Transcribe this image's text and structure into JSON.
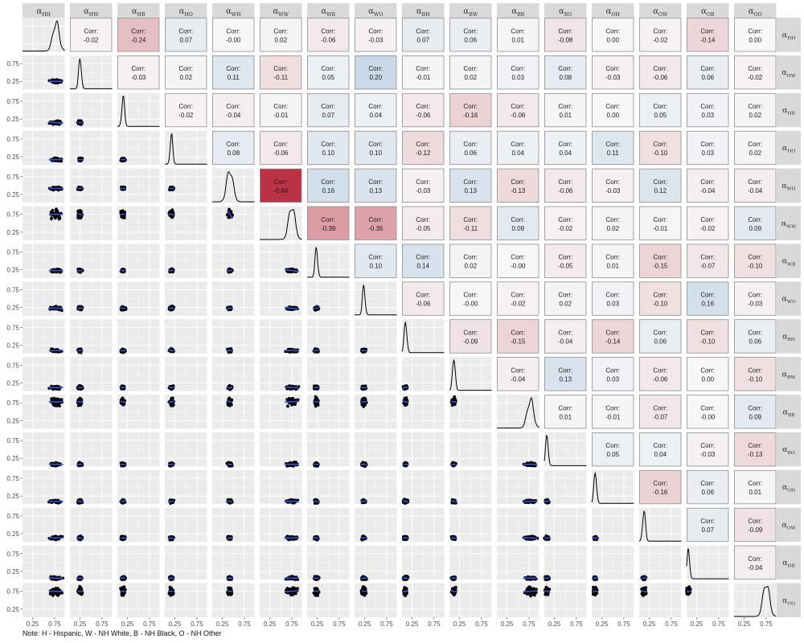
{
  "note": "Note: H - Hispanic, W - NH White, B - NH Black, O - NH Other",
  "chart_data": {
    "type": "scatter",
    "title": "",
    "corr_label": "Corr:",
    "variables": [
      {
        "base": "α",
        "sub": "HH"
      },
      {
        "base": "α",
        "sub": "HW"
      },
      {
        "base": "α",
        "sub": "HB"
      },
      {
        "base": "α",
        "sub": "HO"
      },
      {
        "base": "α",
        "sub": "WH"
      },
      {
        "base": "α",
        "sub": "WW"
      },
      {
        "base": "α",
        "sub": "WB"
      },
      {
        "base": "α",
        "sub": "WO"
      },
      {
        "base": "α",
        "sub": "BH"
      },
      {
        "base": "α",
        "sub": "BW"
      },
      {
        "base": "α",
        "sub": "BB"
      },
      {
        "base": "α",
        "sub": "BO"
      },
      {
        "base": "α",
        "sub": "OH"
      },
      {
        "base": "α",
        "sub": "OW"
      },
      {
        "base": "α",
        "sub": "OB"
      },
      {
        "base": "α",
        "sub": "OO"
      }
    ],
    "means": [
      0.78,
      0.25,
      0.15,
      0.17,
      0.42,
      0.75,
      0.23,
      0.23,
      0.1,
      0.12,
      0.78,
      0.08,
      0.1,
      0.13,
      0.06,
      0.75
    ],
    "axis_range": [
      0,
      1
    ],
    "y_ticks": [
      "0.25",
      "0.75"
    ],
    "x_ticks": [
      "0.25",
      "0.75"
    ],
    "correlations": [
      [
        null,
        "-0.02",
        "-0.24",
        "0.07",
        "-0.00",
        "0.02",
        "-0.06",
        "-0.03",
        "0.07",
        "0.06",
        "0.01",
        "-0.08",
        "0.00",
        "-0.02",
        "-0.14",
        "0.00"
      ],
      [
        null,
        null,
        "-0.03",
        "0.02",
        "0.11",
        "-0.11",
        "0.05",
        "0.20",
        "-0.01",
        "0.02",
        "0.03",
        "0.08",
        "-0.03",
        "-0.06",
        "0.06",
        "-0.02"
      ],
      [
        null,
        null,
        null,
        "-0.02",
        "-0.04",
        "-0.01",
        "0.07",
        "0.04",
        "-0.06",
        "-0.16",
        "-0.06",
        "0.01",
        "0.00",
        "0.05",
        "0.03",
        "0.02"
      ],
      [
        null,
        null,
        null,
        null,
        "0.08",
        "-0.06",
        "0.10",
        "0.10",
        "-0.12",
        "0.06",
        "0.04",
        "0.04",
        "0.11",
        "-0.10",
        "0.03",
        "0.02"
      ],
      [
        null,
        null,
        null,
        null,
        null,
        "-0.84",
        "0.16",
        "0.13",
        "-0.03",
        "0.13",
        "-0.13",
        "-0.06",
        "-0.03",
        "0.12",
        "-0.04",
        "-0.04"
      ],
      [
        null,
        null,
        null,
        null,
        null,
        null,
        "-0.39",
        "-0.36",
        "-0.05",
        "-0.11",
        "0.09",
        "-0.02",
        "0.02",
        "-0.01",
        "-0.02",
        "0.09"
      ],
      [
        null,
        null,
        null,
        null,
        null,
        null,
        null,
        "0.10",
        "0.14",
        "0.02",
        "-0.00",
        "-0.05",
        "0.01",
        "-0.15",
        "-0.07",
        "-0.10"
      ],
      [
        null,
        null,
        null,
        null,
        null,
        null,
        null,
        null,
        "-0.06",
        "-0.00",
        "-0.02",
        "0.02",
        "0.03",
        "-0.10",
        "0.16",
        "-0.03"
      ],
      [
        null,
        null,
        null,
        null,
        null,
        null,
        null,
        null,
        null,
        "-0.09",
        "-0.15",
        "-0.04",
        "-0.14",
        "0.06",
        "-0.10",
        "0.06"
      ],
      [
        null,
        null,
        null,
        null,
        null,
        null,
        null,
        null,
        null,
        null,
        "-0.04",
        "0.13",
        "0.03",
        "-0.06",
        "0.00",
        "-0.10"
      ],
      [
        null,
        null,
        null,
        null,
        null,
        null,
        null,
        null,
        null,
        null,
        null,
        "0.01",
        "-0.01",
        "-0.07",
        "-0.00",
        "0.09"
      ],
      [
        null,
        null,
        null,
        null,
        null,
        null,
        null,
        null,
        null,
        null,
        null,
        null,
        "0.05",
        "0.04",
        "-0.03",
        "-0.13"
      ],
      [
        null,
        null,
        null,
        null,
        null,
        null,
        null,
        null,
        null,
        null,
        null,
        null,
        null,
        "-0.16",
        "0.06",
        "0.01"
      ],
      [
        null,
        null,
        null,
        null,
        null,
        null,
        null,
        null,
        null,
        null,
        null,
        null,
        null,
        null,
        "0.07",
        "-0.09"
      ],
      [
        null,
        null,
        null,
        null,
        null,
        null,
        null,
        null,
        null,
        null,
        null,
        null,
        null,
        null,
        null,
        "-0.04"
      ],
      [
        null,
        null,
        null,
        null,
        null,
        null,
        null,
        null,
        null,
        null,
        null,
        null,
        null,
        null,
        null,
        null
      ]
    ],
    "colors": {
      "panel_bg": "#ebebeb",
      "grid": "#ffffff",
      "strip_bg": "#d9d9d9",
      "point": "#000000",
      "fit_line": "#3050d8",
      "density_line": "#000000",
      "negative_strong": "#b2182b",
      "positive_strong": "#2166ac",
      "neutral": "#f7f7f7"
    },
    "grid": true
  }
}
